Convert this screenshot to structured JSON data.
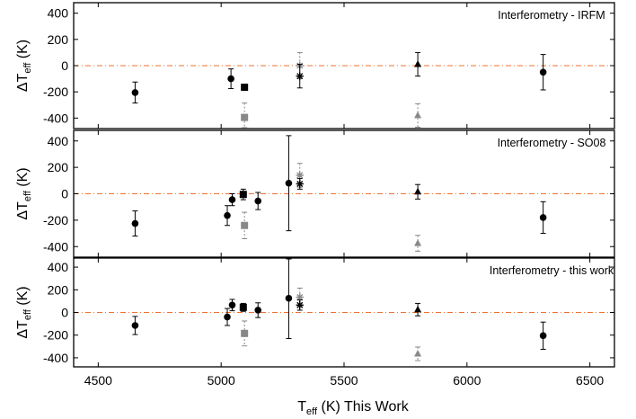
{
  "chart_data": {
    "type": "scatter",
    "xlabel": {
      "main": "T",
      "sub": "eff",
      "tail": " (K) This Work"
    },
    "ylabel": {
      "pre": "ΔT",
      "sub": "eff",
      "tail": " (K)"
    },
    "xlim": [
      4400,
      6600
    ],
    "ylim": [
      -480,
      480
    ],
    "xticks": [
      "4500",
      "5000",
      "5500",
      "6000",
      "6500"
    ],
    "yticks": [
      "400",
      "200",
      "0",
      "-200",
      "-400"
    ],
    "reference_line": {
      "y": 0,
      "style": "dash-dot",
      "color": "#f07030"
    },
    "colors": {
      "black": "#000000",
      "gray": "#888888",
      "ref": "#f07030"
    },
    "panels": [
      {
        "title": "Interferometry - IRFM",
        "points": [
          {
            "x": 4650,
            "y": -205,
            "err": 80,
            "marker": "circle",
            "color": "black"
          },
          {
            "x": 5040,
            "y": -100,
            "err": 75,
            "marker": "circle",
            "color": "black"
          },
          {
            "x": 5095,
            "y": -165,
            "err": 0,
            "marker": "square",
            "color": "black"
          },
          {
            "x": 5095,
            "y": -395,
            "err": 110,
            "marker": "square",
            "color": "gray",
            "dotted": true
          },
          {
            "x": 5320,
            "y": 0,
            "err": 100,
            "marker": "asterisk",
            "color": "gray",
            "dotted": true
          },
          {
            "x": 5320,
            "y": -80,
            "err": 90,
            "marker": "asterisk",
            "color": "black"
          },
          {
            "x": 5800,
            "y": 10,
            "err": 90,
            "marker": "triangle",
            "color": "black"
          },
          {
            "x": 5800,
            "y": -380,
            "err": 90,
            "marker": "triangle",
            "color": "gray",
            "dotted": true
          },
          {
            "x": 6310,
            "y": -50,
            "err": 135,
            "marker": "circle",
            "color": "black"
          }
        ]
      },
      {
        "title": "Interferometry - SO08",
        "points": [
          {
            "x": 4650,
            "y": -225,
            "err": 95,
            "marker": "circle",
            "color": "black"
          },
          {
            "x": 5025,
            "y": -165,
            "err": 75,
            "marker": "circle",
            "color": "black"
          },
          {
            "x": 5045,
            "y": -45,
            "err": 45,
            "marker": "circle",
            "color": "black"
          },
          {
            "x": 5090,
            "y": -5,
            "err": 40,
            "marker": "square",
            "color": "black"
          },
          {
            "x": 5095,
            "y": -240,
            "err": 100,
            "marker": "square",
            "color": "gray",
            "dotted": true
          },
          {
            "x": 5150,
            "y": -55,
            "err": 65,
            "marker": "circle",
            "color": "black"
          },
          {
            "x": 5275,
            "y": 80,
            "err": 360,
            "marker": "circle",
            "color": "black"
          },
          {
            "x": 5320,
            "y": 140,
            "err": 90,
            "marker": "asterisk",
            "color": "gray",
            "dotted": true
          },
          {
            "x": 5320,
            "y": 75,
            "err": 40,
            "marker": "asterisk",
            "color": "black"
          },
          {
            "x": 5800,
            "y": 15,
            "err": 55,
            "marker": "triangle",
            "color": "black"
          },
          {
            "x": 5800,
            "y": -375,
            "err": 60,
            "marker": "triangle",
            "color": "gray",
            "dotted": true
          },
          {
            "x": 6310,
            "y": -180,
            "err": 120,
            "marker": "circle",
            "color": "black"
          }
        ]
      },
      {
        "title": "Interferometry - this work",
        "points": [
          {
            "x": 4650,
            "y": -115,
            "err": 80,
            "marker": "circle",
            "color": "black"
          },
          {
            "x": 5025,
            "y": -40,
            "err": 75,
            "marker": "circle",
            "color": "black"
          },
          {
            "x": 5045,
            "y": 65,
            "err": 50,
            "marker": "circle",
            "color": "black"
          },
          {
            "x": 5090,
            "y": 45,
            "err": 35,
            "marker": "square",
            "color": "black"
          },
          {
            "x": 5095,
            "y": -185,
            "err": 110,
            "marker": "square",
            "color": "gray",
            "dotted": true
          },
          {
            "x": 5150,
            "y": 20,
            "err": 65,
            "marker": "circle",
            "color": "black"
          },
          {
            "x": 5275,
            "y": 125,
            "err": 355,
            "marker": "circle",
            "color": "black"
          },
          {
            "x": 5320,
            "y": 135,
            "err": 80,
            "marker": "asterisk",
            "color": "gray",
            "dotted": true
          },
          {
            "x": 5320,
            "y": 65,
            "err": 45,
            "marker": "asterisk",
            "color": "black"
          },
          {
            "x": 5800,
            "y": 25,
            "err": 55,
            "marker": "triangle",
            "color": "black"
          },
          {
            "x": 5800,
            "y": -365,
            "err": 60,
            "marker": "triangle",
            "color": "gray",
            "dotted": true
          },
          {
            "x": 6310,
            "y": -205,
            "err": 120,
            "marker": "circle",
            "color": "black"
          }
        ]
      }
    ]
  }
}
